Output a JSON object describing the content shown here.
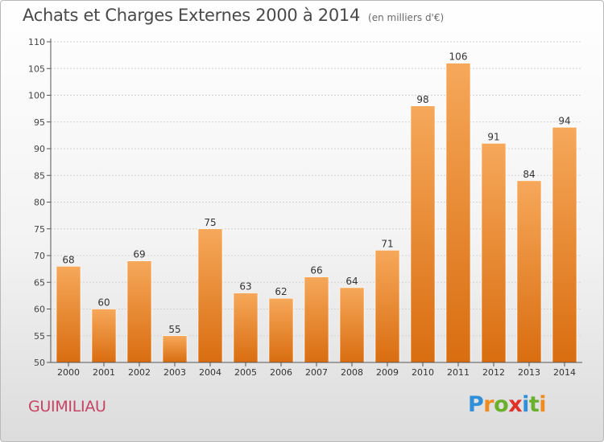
{
  "title": "Achats et Charges Externes 2000 à 2014",
  "unit": "(en milliers d'€)",
  "commune": "GUIMILIAU",
  "logo_text": "Proxiti",
  "colors": {
    "bar": "#f08a24",
    "bar_light": "#f6a85a",
    "bar_dark": "#d96d10",
    "axis": "#555555"
  },
  "chart_data": {
    "type": "bar",
    "categories": [
      "2000",
      "2001",
      "2002",
      "2003",
      "2004",
      "2005",
      "2006",
      "2007",
      "2008",
      "2009",
      "2010",
      "2011",
      "2012",
      "2013",
      "2014"
    ],
    "values": [
      68,
      60,
      69,
      55,
      75,
      63,
      62,
      66,
      64,
      71,
      98,
      106,
      91,
      84,
      94
    ],
    "title": "Achats et Charges Externes 2000 à 2014",
    "xlabel": "",
    "ylabel": "",
    "ylim": [
      50,
      110
    ],
    "yticks": [
      50,
      55,
      60,
      65,
      70,
      75,
      80,
      85,
      90,
      95,
      100,
      105,
      110
    ],
    "grid": true,
    "data_labels": true
  }
}
